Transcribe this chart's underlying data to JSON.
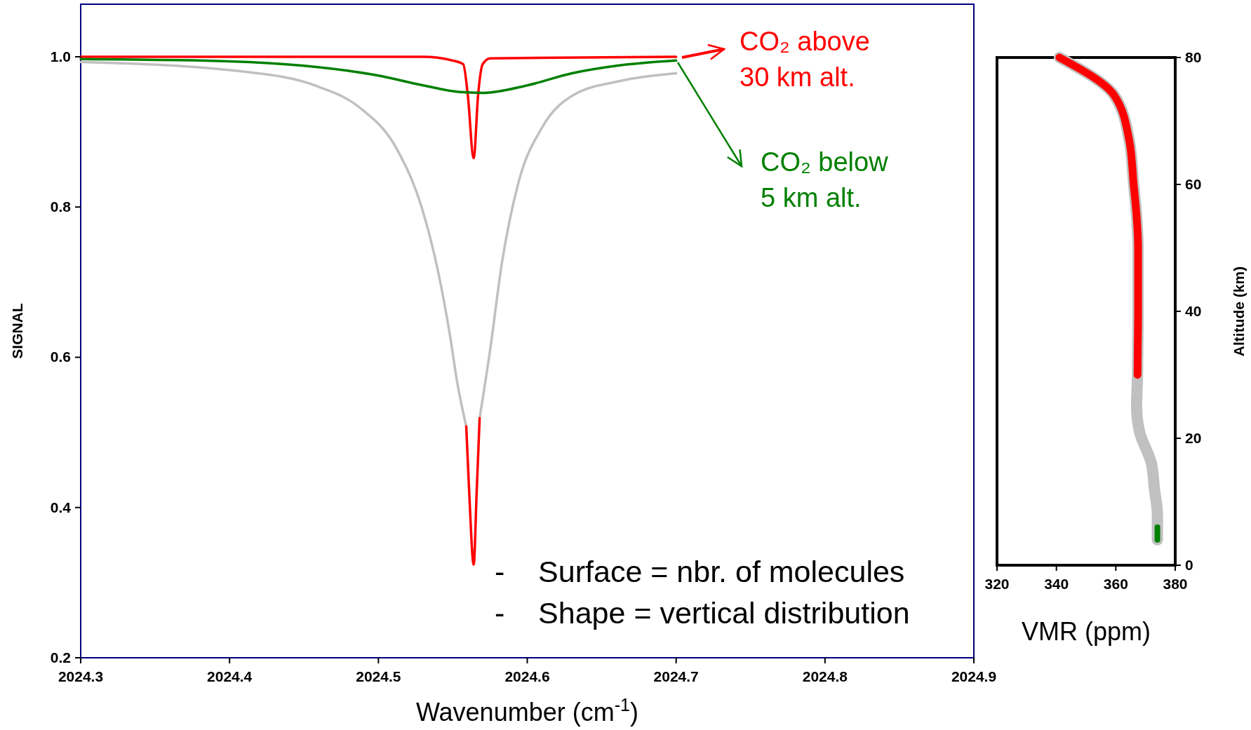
{
  "chart_data": [
    {
      "type": "line",
      "xlabel": "Wavenumber (cm$^{-1}$)",
      "ylabel": "SIGNAL",
      "xlim": [
        2024.3,
        2024.9
      ],
      "xticks": [
        2024.3,
        2024.4,
        2024.5,
        2024.6,
        2024.7,
        2024.8,
        2024.9
      ],
      "ylim": [
        0.2,
        1.07
      ],
      "yticks": [
        0.2,
        0.4,
        0.6,
        0.8,
        {
          "value": 1,
          "label": "1.0"
        }
      ],
      "grid": false,
      "legend": "top right",
      "marker": "none",
      "line_style": "solid",
      "annotations": [
        "-    Surface = nbr. of molecules",
        "-    Shape = vertical distribution"
      ],
      "series": [
        {
          "color": "#c0c0c0",
          "x": [
            2024.3,
            2024.406,
            2024.46,
            2024.487,
            2024.513,
            2024.529,
            2024.54,
            2024.548,
            2024.553,
            2024.559,
            2024.564,
            2024.568,
            2024.575,
            2024.583,
            2024.594,
            2024.61,
            2024.631,
            2024.663,
            2024.7
          ],
          "values": [
            0.993,
            0.981,
            0.96,
            0.933,
            0.875,
            0.8,
            0.715,
            0.63,
            0.566,
            0.508,
            null,
            0.519,
            0.609,
            0.726,
            0.832,
            0.906,
            0.949,
            0.968,
            0.978
          ]
        },
        {
          "color": "#ff0000",
          "x": [
            2024.559,
            2024.561,
            2024.564,
            2024.566,
            2024.568
          ],
          "values": [
            0.508,
            0.42,
            0.324,
            0.42,
            0.519
          ]
        },
        {
          "name": "CO₂ above 30 km alt.",
          "color": "#ff0000",
          "x": [
            2024.3,
            2024.53,
            2024.55,
            2024.557,
            2024.56,
            2024.564,
            2024.567,
            2024.57,
            2024.575,
            2024.7
          ],
          "values": [
            1.0,
            1.0,
            0.995,
            0.99,
            0.95,
            0.865,
            0.95,
            0.99,
            0.998,
            1.0
          ]
        },
        {
          "name": "CO₂ below 5 km alt.",
          "color": "#008000",
          "x": [
            2024.3,
            2024.4,
            2024.45,
            2024.5,
            2024.53,
            2024.555,
            2024.57,
            2024.6,
            2024.63,
            2024.66,
            2024.7
          ],
          "values": [
            0.997,
            0.994,
            0.988,
            0.975,
            0.962,
            0.953,
            0.952,
            0.962,
            0.978,
            0.988,
            0.995
          ]
        }
      ]
    },
    {
      "type": "line",
      "xlabel": "VMR (ppm)",
      "ylabel": "Altitude (km)",
      "xlim": [
        320,
        380
      ],
      "xticks": [
        320,
        340,
        360,
        380
      ],
      "ylim": [
        0,
        80
      ],
      "yticks": [
        0,
        20,
        40,
        60,
        80
      ],
      "grid": false,
      "marker": "none",
      "line_style": "solid",
      "series": [
        {
          "color": "#c0c0c0",
          "x": [
            341,
            359.5,
            364.5,
            366,
            367,
            367.5,
            367.5,
            367.3,
            367,
            368,
            372,
            373,
            374,
            374
          ],
          "values": [
            80,
            74,
            67,
            60,
            55,
            50,
            40,
            30,
            25,
            21,
            16,
            12,
            8,
            4
          ]
        },
        {
          "color": "#ff0000",
          "x": [
            341,
            359.5,
            364.5,
            366,
            367,
            367.5,
            367.5,
            367.3
          ],
          "values": [
            80,
            74,
            67,
            60,
            55,
            50,
            40,
            30
          ]
        },
        {
          "color": "#008000",
          "x": [
            374,
            374
          ],
          "values": [
            6,
            4
          ]
        }
      ]
    }
  ]
}
